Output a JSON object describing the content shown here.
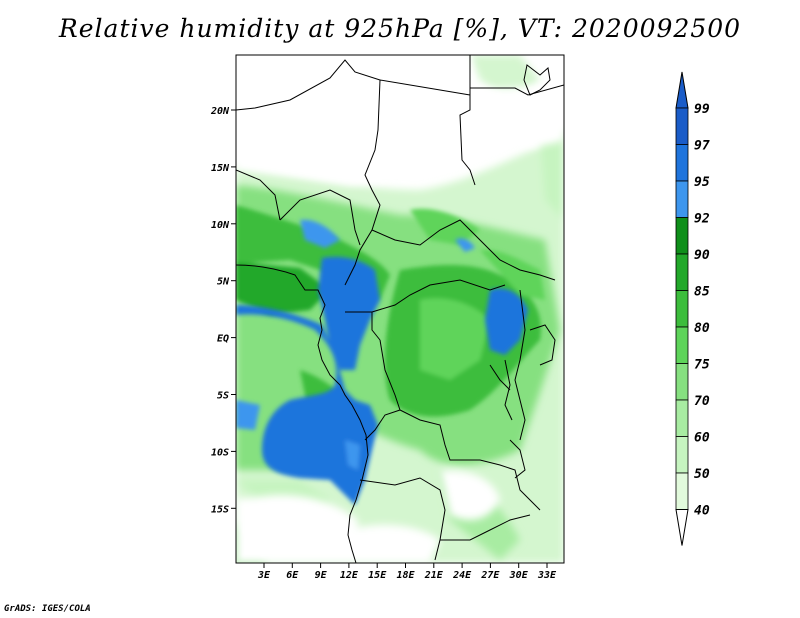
{
  "title": "Relative humidity at 925hPa [%], VT: 2020092500",
  "credit": "GrADS: IGES/COLA",
  "map": {
    "lat_labels": [
      "20N",
      "15N",
      "10N",
      "5N",
      "EQ",
      "5S",
      "10S",
      "15S"
    ],
    "lon_labels": [
      "3E",
      "6E",
      "9E",
      "12E",
      "15E",
      "18E",
      "21E",
      "24E",
      "27E",
      "30E",
      "33E"
    ]
  },
  "colorbar": {
    "labels": [
      "99",
      "97",
      "95",
      "92",
      "90",
      "85",
      "80",
      "75",
      "70",
      "60",
      "50",
      "40"
    ],
    "colors": {
      "99": "#1a5cc8",
      "97": "#1f74dc",
      "95": "#3d96ee",
      "92": "#0f8f1a",
      "90": "#22a82a",
      "85": "#3cbd3c",
      "80": "#5ed45a",
      "75": "#86e080",
      "70": "#a8eca2",
      "60": "#c6f4c0",
      "50": "#e2fadc",
      "40": "#ffffff"
    }
  }
}
